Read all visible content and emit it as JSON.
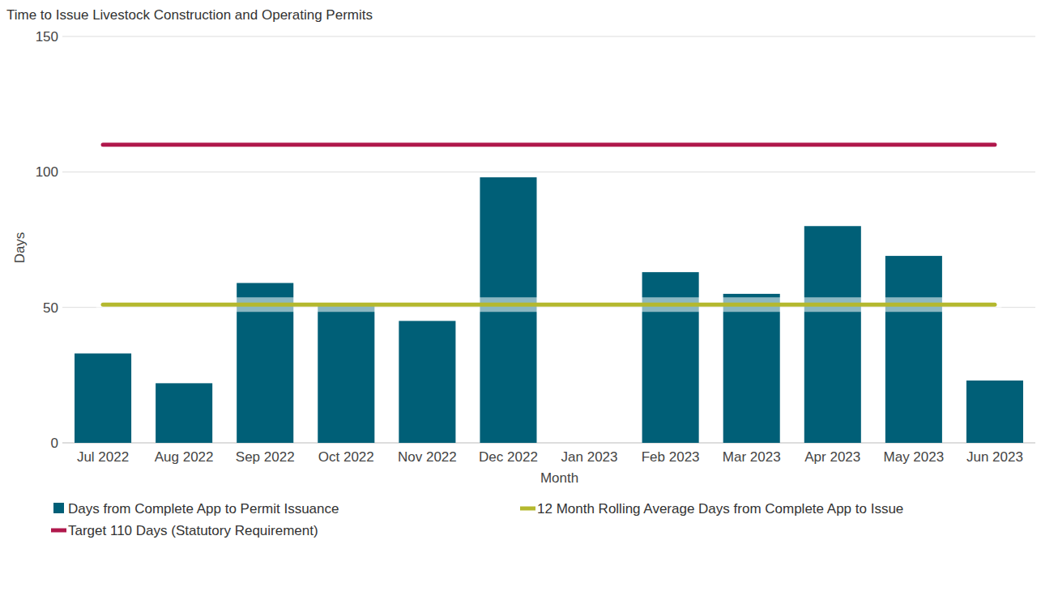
{
  "chart_data": {
    "type": "bar",
    "title": "Time to Issue Livestock Construction and Operating Permits",
    "x_label": "Month",
    "y_label": "Days",
    "categories": [
      "Jul 2022",
      "Aug 2022",
      "Sep 2022",
      "Oct 2022",
      "Nov 2022",
      "Dec 2022",
      "Jan 2023",
      "Feb 2023",
      "Mar 2023",
      "Apr 2023",
      "May 2023",
      "Jun 2023"
    ],
    "series": [
      {
        "name": "Days from Complete App to Permit Issuance",
        "type": "bar",
        "color": "#005f77",
        "values": [
          33,
          22,
          59,
          51,
          45,
          98,
          null,
          63,
          55,
          80,
          69,
          23
        ]
      },
      {
        "name": "12 Month Rolling Average Days from Complete App to Issue",
        "type": "line",
        "color": "#b4b82e",
        "values": [
          51,
          51,
          51,
          51,
          51,
          51,
          51,
          51,
          51,
          51,
          51,
          51
        ]
      },
      {
        "name": "Target 110 Days (Statutory Requirement)",
        "type": "line",
        "color": "#b0184c",
        "values": [
          110,
          110,
          110,
          110,
          110,
          110,
          110,
          110,
          110,
          110,
          110,
          110
        ]
      }
    ],
    "ylim": [
      0,
      150
    ],
    "yticks": [
      0,
      50,
      100,
      150
    ],
    "grid": true,
    "legend": "bottom"
  }
}
